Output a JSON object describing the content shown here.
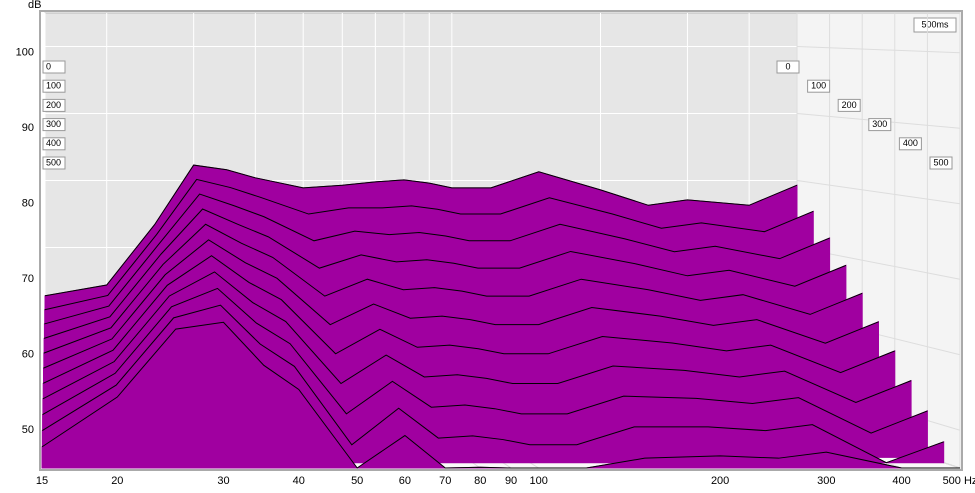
{
  "chart_data": {
    "type": "waterfall",
    "y_label": "dB",
    "time_label": "500ms",
    "color": "#a000a0",
    "xlog": true,
    "xlim": [
      15,
      500
    ],
    "xticks": [
      15,
      20,
      30,
      40,
      50,
      60,
      70,
      80,
      90,
      100,
      200,
      300,
      400,
      {
        "value": 500,
        "label": "500 Hz"
      }
    ],
    "ylim": [
      45,
      105
    ],
    "yticks": [
      50,
      60,
      70,
      80,
      90,
      100
    ],
    "zlim": [
      0,
      500
    ],
    "zticks": [
      0,
      100,
      200,
      300,
      400,
      500
    ],
    "x": [
      15,
      20,
      25,
      30,
      35,
      40,
      50,
      60,
      70,
      80,
      90,
      100,
      120,
      150,
      200,
      250,
      300,
      400,
      500
    ],
    "z": [
      0,
      50,
      100,
      150,
      200,
      250,
      300,
      350,
      400,
      450,
      500
    ],
    "series": [
      {
        "values": [
          62.8,
          64.4,
          73.4,
          82.3,
          81.6,
          80.4,
          78.9,
          79.3,
          79.8,
          80.1,
          79.6,
          78.9,
          78.9,
          81.3,
          78.6,
          76.3,
          77.1,
          76.3,
          79.3
        ]
      },
      {
        "values": [
          61.3,
          63.4,
          72.4,
          80.5,
          79.3,
          77.9,
          75.4,
          76.3,
          76.3,
          76.6,
          76.1,
          75.4,
          75.4,
          77.8,
          75.4,
          73.3,
          74.1,
          72.8,
          75.8
        ]
      },
      {
        "values": [
          59.8,
          62.4,
          71.4,
          78.7,
          77.0,
          75.4,
          71.9,
          73.3,
          72.8,
          73.1,
          72.6,
          71.9,
          71.9,
          74.3,
          72.2,
          70.3,
          71.1,
          69.3,
          72.3
        ]
      },
      {
        "values": [
          58.3,
          61.4,
          70.4,
          76.9,
          74.7,
          72.9,
          68.4,
          70.3,
          69.3,
          69.6,
          69.1,
          68.4,
          68.4,
          70.8,
          69.0,
          67.3,
          68.1,
          65.8,
          68.8
        ]
      },
      {
        "values": [
          56.8,
          60.4,
          69.4,
          75.1,
          72.4,
          70.4,
          64.9,
          67.3,
          65.8,
          66.1,
          65.6,
          64.9,
          64.9,
          67.3,
          65.8,
          64.3,
          65.1,
          62.3,
          65.3
        ]
      },
      {
        "values": [
          55.3,
          59.4,
          68.4,
          73.3,
          70.1,
          67.9,
          61.4,
          64.3,
          62.3,
          62.6,
          62.1,
          61.4,
          61.4,
          63.8,
          62.6,
          61.3,
          62.1,
          58.8,
          61.8
        ]
      },
      {
        "values": [
          53.8,
          58.4,
          67.4,
          71.5,
          67.8,
          65.4,
          57.9,
          61.3,
          58.8,
          59.1,
          58.6,
          57.9,
          57.9,
          60.3,
          59.4,
          58.3,
          59.1,
          55.3,
          58.3
        ]
      },
      {
        "values": [
          52.3,
          57.4,
          66.4,
          69.7,
          65.5,
          62.9,
          54.4,
          58.3,
          55.3,
          55.6,
          55.1,
          54.4,
          54.4,
          56.8,
          56.2,
          55.3,
          56.1,
          51.8,
          54.8
        ]
      },
      {
        "values": [
          50.8,
          56.4,
          65.4,
          67.9,
          63.2,
          60.4,
          50.9,
          55.3,
          51.8,
          52.1,
          51.6,
          50.9,
          50.9,
          53.3,
          53.0,
          52.3,
          53.1,
          48.3,
          51.3
        ]
      },
      {
        "values": [
          49.3,
          55.4,
          64.4,
          66.1,
          60.9,
          57.9,
          47.4,
          52.3,
          48.3,
          48.6,
          48.1,
          47.4,
          47.4,
          49.8,
          49.8,
          49.3,
          50.1,
          45,
          47.8
        ]
      },
      {
        "values": [
          47.8,
          54.4,
          63.4,
          64.3,
          58.6,
          55.4,
          45,
          49.3,
          45,
          45.1,
          45,
          45,
          45,
          46.3,
          46.6,
          46.3,
          47.1,
          45,
          45
        ]
      }
    ]
  }
}
